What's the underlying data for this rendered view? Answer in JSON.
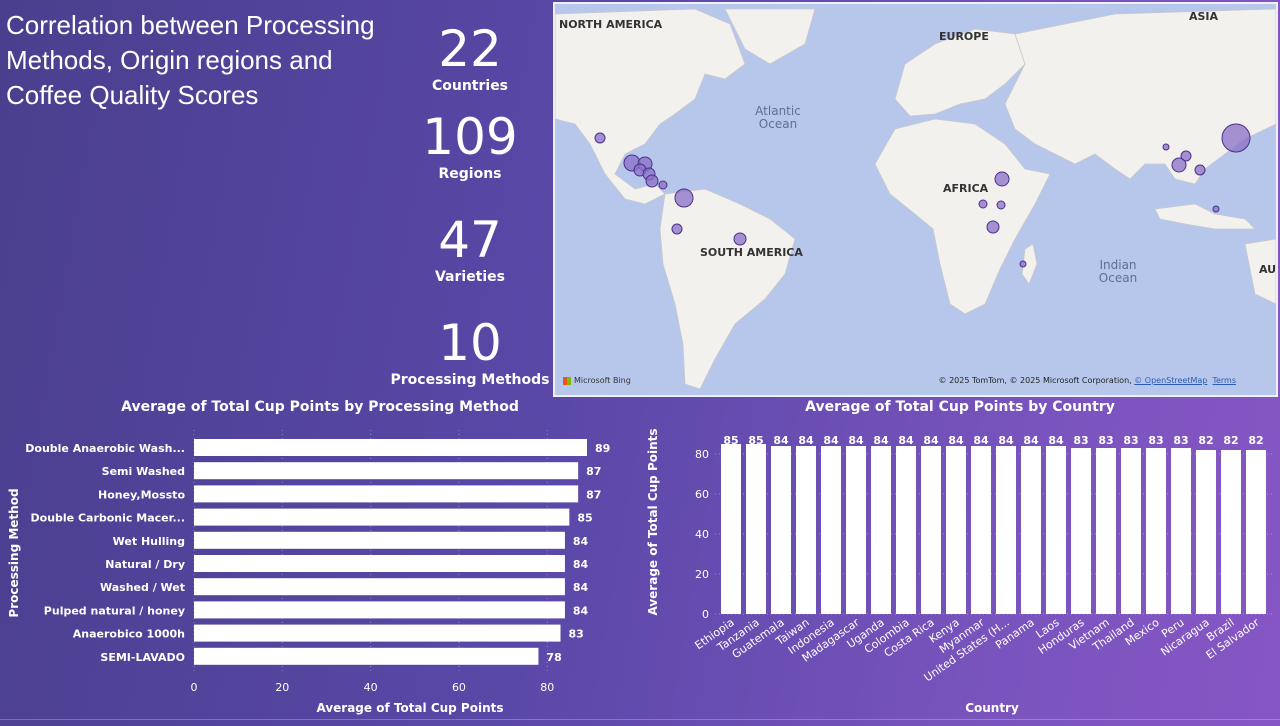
{
  "title": "Correlation between Processing Methods, Origin regions and Coffee Quality Scores",
  "kpis": [
    {
      "value": "22",
      "label": "Countries"
    },
    {
      "value": "109",
      "label": "Regions"
    },
    {
      "value": "47",
      "label": "Varieties"
    },
    {
      "value": "10",
      "label": "Processing Methods"
    }
  ],
  "map": {
    "labels": {
      "north_america": "NORTH AMERICA",
      "europe": "EUROPE",
      "asia": "ASIA",
      "africa": "AFRICA",
      "south_america": "SOUTH AMERICA",
      "atlantic": "Atlantic Ocean",
      "indian": "Indian Ocean",
      "au": "AU"
    },
    "attribution": "© 2025 TomTom, © 2025 Microsoft Corporation, ",
    "osm": "© OpenStreetMap",
    "terms": "Terms",
    "bing": "Microsoft Bing"
  },
  "colors": {
    "bubble": "#8a6fc7",
    "bubble_stroke": "#4b2f8a",
    "bar": "#ffffff",
    "land": "#f1f1ef"
  },
  "chart_data": [
    {
      "type": "bar",
      "orientation": "horizontal",
      "title": "Average of Total Cup Points by Processing Method",
      "xlabel": "Average of Total Cup Points",
      "ylabel": "Processing Method",
      "xlim": [
        0,
        89
      ],
      "xticks": [
        0,
        20,
        40,
        60,
        80
      ],
      "categories": [
        "Double Anaerobic Wash...",
        "Semi Washed",
        "Honey,Mossto",
        "Double Carbonic Macer...",
        "Wet Hulling",
        "Natural / Dry",
        "Washed / Wet",
        "Pulped natural / honey",
        "Anaerobico 1000h",
        "SEMI-LAVADO"
      ],
      "values": [
        89,
        87,
        87,
        85,
        84,
        84,
        84,
        84,
        83,
        78
      ]
    },
    {
      "type": "bar",
      "orientation": "vertical",
      "title": "Average of Total Cup Points by Country",
      "xlabel": "Country",
      "ylabel": "Average of Total Cup Points",
      "ylim": [
        0,
        85
      ],
      "yticks": [
        0,
        20,
        40,
        60,
        80
      ],
      "categories": [
        "Ethiopia",
        "Tanzania",
        "Guatemala",
        "Taiwan",
        "Indonesia",
        "Madagascar",
        "Uganda",
        "Colombia",
        "Costa Rica",
        "Kenya",
        "Myanmar",
        "United States (H...",
        "Panama",
        "Laos",
        "Honduras",
        "Vietnam",
        "Thailand",
        "Mexico",
        "Peru",
        "Nicaragua",
        "Brazil",
        "El Salvador"
      ],
      "values": [
        85,
        85,
        84,
        84,
        84,
        84,
        84,
        84,
        84,
        84,
        84,
        84,
        84,
        84,
        83,
        83,
        83,
        83,
        83,
        82,
        82,
        82
      ]
    }
  ]
}
